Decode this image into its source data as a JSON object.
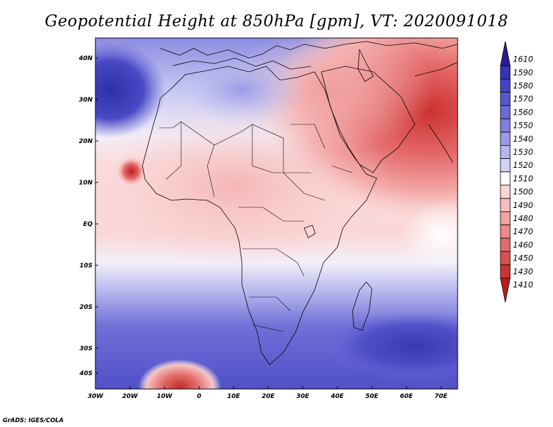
{
  "title": "Geopotential Height at 850hPa [gpm], VT: 2020091018",
  "credit": "GrADS: IGES/COLA",
  "lat_labels": [
    "40N",
    "30N",
    "20N",
    "10N",
    "EQ",
    "10S",
    "20S",
    "30S",
    "40S"
  ],
  "lon_labels": [
    "30W",
    "20W",
    "10W",
    "0",
    "10E",
    "20E",
    "30E",
    "40E",
    "50E",
    "60E",
    "70E"
  ],
  "colorbar": {
    "levels": [
      "1610",
      "1590",
      "1580",
      "1570",
      "1560",
      "1550",
      "1540",
      "1530",
      "1520",
      "1510",
      "1500",
      "1490",
      "1480",
      "1470",
      "1460",
      "1450",
      "1430",
      "1410"
    ],
    "colors": [
      "#2a1a96",
      "#3333b8",
      "#4444c8",
      "#5656d2",
      "#6a6ad9",
      "#8080df",
      "#9a9ae6",
      "#b4b4ee",
      "#d2d2f6",
      "#ffffff",
      "#fbd6d6",
      "#f6bcbc",
      "#f0a2a2",
      "#ea8888",
      "#e26c6c",
      "#da5050",
      "#cc3434",
      "#b81c1c"
    ]
  },
  "map": {
    "field": "Geopotential Height",
    "level": "850hPa",
    "units": "gpm"
  }
}
